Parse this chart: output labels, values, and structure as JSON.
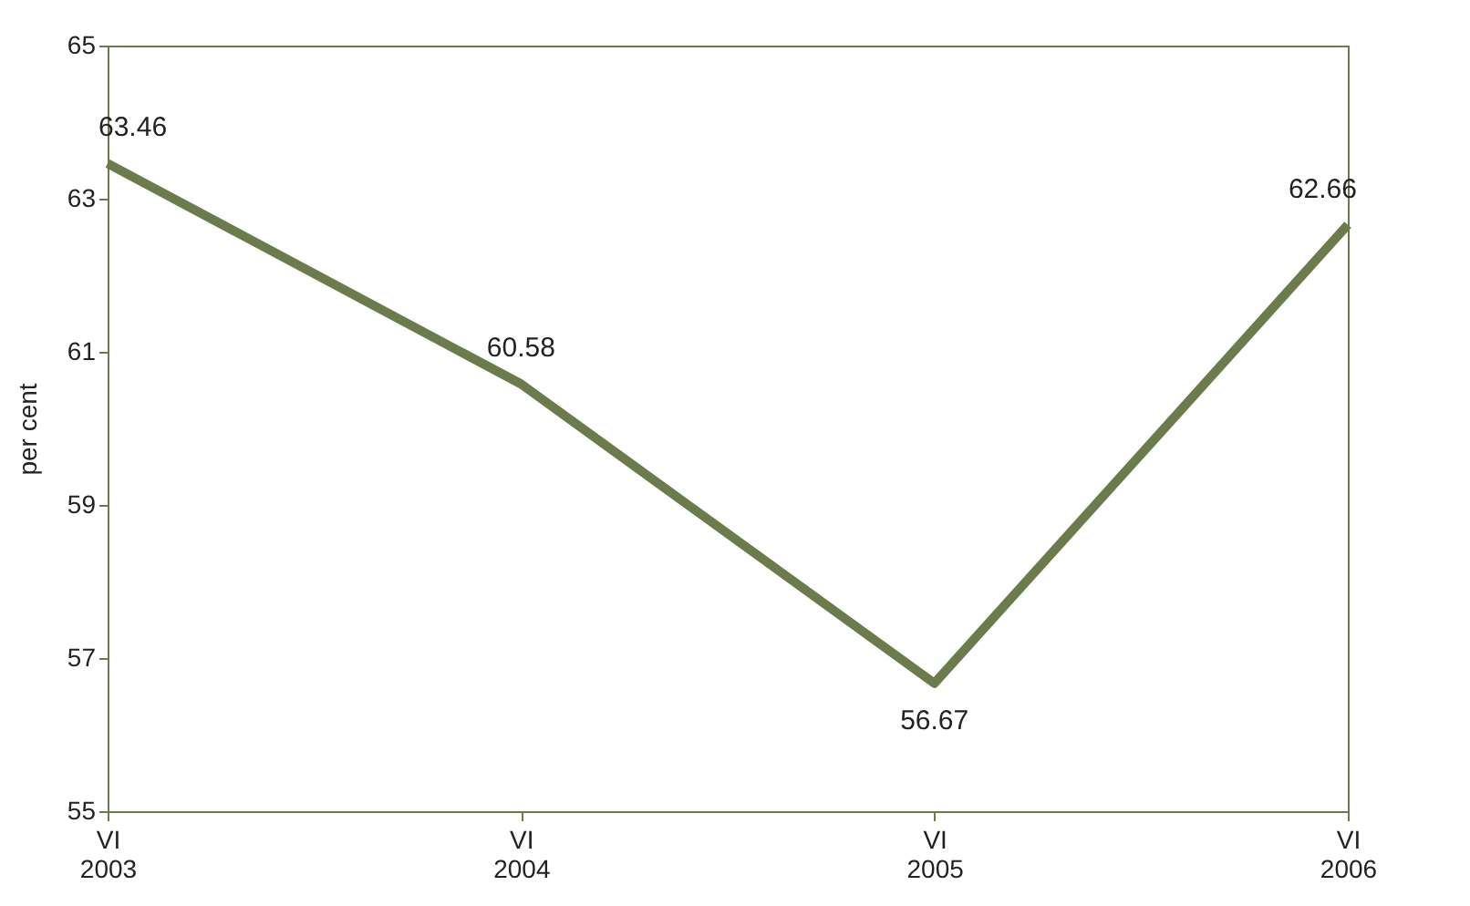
{
  "chart_data": {
    "type": "line",
    "categories": [
      "VI\n2003",
      "VI\n2004",
      "VI\n2005",
      "VI\n2006"
    ],
    "series": [
      {
        "color": "#6b7b4b",
        "values": [
          63.46,
          60.58,
          56.67,
          62.66
        ]
      }
    ],
    "ylabel": "per cent",
    "ylim": [
      55,
      65
    ],
    "yticks": [
      55,
      57,
      59,
      61,
      63,
      65
    ],
    "grid": false,
    "marker": "none",
    "line_style": "solid",
    "data_labels": true
  }
}
